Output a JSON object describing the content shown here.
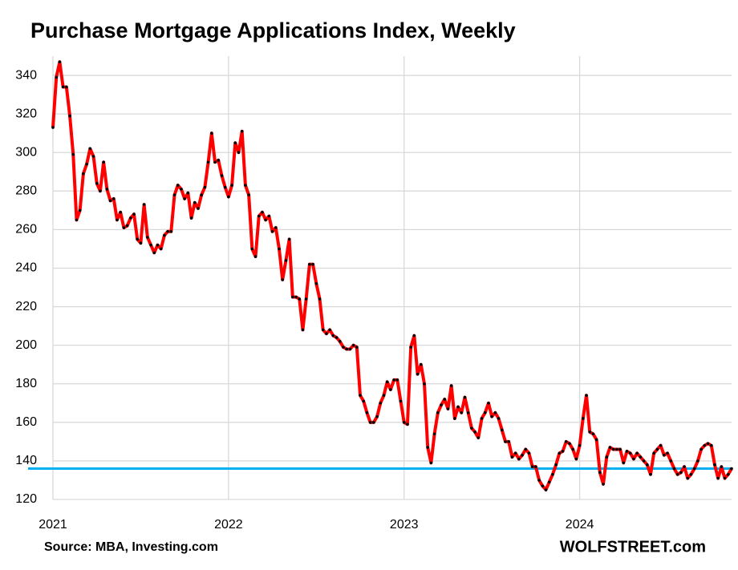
{
  "chart_data": {
    "type": "line",
    "title": "Purchase Mortgage Applications Index, Weekly",
    "source": "Source: MBA, Investing.com",
    "credit": "WOLFSTREET.com",
    "categories": [
      "2021",
      null,
      null,
      null,
      null,
      null,
      null,
      null,
      null,
      null,
      null,
      null,
      null,
      null,
      null,
      null,
      null,
      null,
      null,
      null,
      null,
      null,
      null,
      null,
      null,
      null,
      null,
      null,
      null,
      null,
      null,
      null,
      null,
      null,
      null,
      null,
      null,
      null,
      null,
      null,
      null,
      null,
      null,
      null,
      null,
      null,
      null,
      null,
      null,
      null,
      null,
      null,
      "2022",
      null,
      null,
      null,
      null,
      null,
      null,
      null,
      null,
      null,
      null,
      null,
      null,
      null,
      null,
      null,
      null,
      null,
      null,
      null,
      null,
      null,
      null,
      null,
      null,
      null,
      null,
      null,
      null,
      null,
      null,
      null,
      null,
      null,
      null,
      null,
      null,
      null,
      null,
      null,
      null,
      null,
      null,
      null,
      null,
      null,
      null,
      null,
      null,
      null,
      null,
      null,
      "2023",
      null,
      null,
      null,
      null,
      null,
      null,
      null,
      null,
      null,
      null,
      null,
      null,
      null,
      null,
      null,
      null,
      null,
      null,
      null,
      null,
      null,
      null,
      null,
      null,
      null,
      null,
      null,
      null,
      null,
      null,
      null,
      null,
      null,
      null,
      null,
      null,
      null,
      null,
      null,
      null,
      null,
      null,
      null,
      null,
      null,
      null,
      null,
      null,
      null,
      null,
      null,
      "2024",
      null,
      null,
      null,
      null,
      null,
      null,
      null,
      null,
      null,
      null,
      null,
      null,
      null,
      null,
      null,
      null,
      null,
      null,
      null,
      null,
      null,
      null,
      null,
      null,
      null,
      null,
      null,
      null,
      null,
      null,
      null,
      null,
      null,
      null,
      null,
      null,
      null,
      null,
      null,
      null,
      null,
      null,
      null,
      null,
      null
    ],
    "series": [
      {
        "name": "Purchase Mortgage Applications Index",
        "color": "#ff0000",
        "marker_color": "#000000",
        "values": [
          313,
          339,
          347,
          334,
          334,
          319,
          299,
          265,
          270,
          289,
          294,
          302,
          298,
          284,
          280,
          295,
          281,
          275,
          276,
          265,
          269,
          261,
          262,
          266,
          268,
          255,
          253,
          273,
          256,
          252,
          248,
          252,
          250,
          257,
          259,
          259,
          278,
          283,
          281,
          276,
          279,
          266,
          274,
          271,
          278,
          282,
          295,
          310,
          295,
          296,
          288,
          282,
          277,
          283,
          305,
          300,
          311,
          283,
          278,
          250,
          246,
          267,
          269,
          265,
          267,
          259,
          261,
          250,
          234,
          244,
          255,
          225,
          225,
          224,
          208,
          224,
          242,
          242,
          232,
          224,
          208,
          206,
          208,
          205,
          204,
          202,
          199,
          198,
          198,
          200,
          199,
          174,
          171,
          165,
          160,
          160,
          163,
          170,
          174,
          181,
          177,
          182,
          182,
          171,
          160,
          159,
          199,
          205,
          185,
          190,
          180,
          147,
          139,
          154,
          165,
          169,
          172,
          167,
          179,
          162,
          168,
          165,
          173,
          165,
          157,
          155,
          152,
          162,
          165,
          170,
          163,
          165,
          162,
          156,
          150,
          150,
          142,
          144,
          141,
          143,
          146,
          144,
          137,
          137,
          130,
          127,
          125,
          129,
          133,
          138,
          144,
          145,
          150,
          149,
          146,
          141,
          148,
          162,
          174,
          155,
          154,
          151,
          134,
          128,
          142,
          147,
          146,
          146,
          146,
          139,
          145,
          144,
          141,
          144,
          142,
          140,
          138,
          133,
          144,
          146,
          148,
          143,
          144,
          140,
          136,
          133,
          134,
          137,
          131,
          133,
          136,
          140,
          146,
          148,
          149,
          148,
          138,
          131,
          137,
          131,
          133,
          136
        ]
      }
    ],
    "reference_line": {
      "value": 136,
      "color": "#00b0f0"
    },
    "ylim": [
      120,
      350
    ],
    "yticks": [
      120,
      140,
      160,
      180,
      200,
      220,
      240,
      260,
      280,
      300,
      320,
      340
    ],
    "grid": true
  }
}
